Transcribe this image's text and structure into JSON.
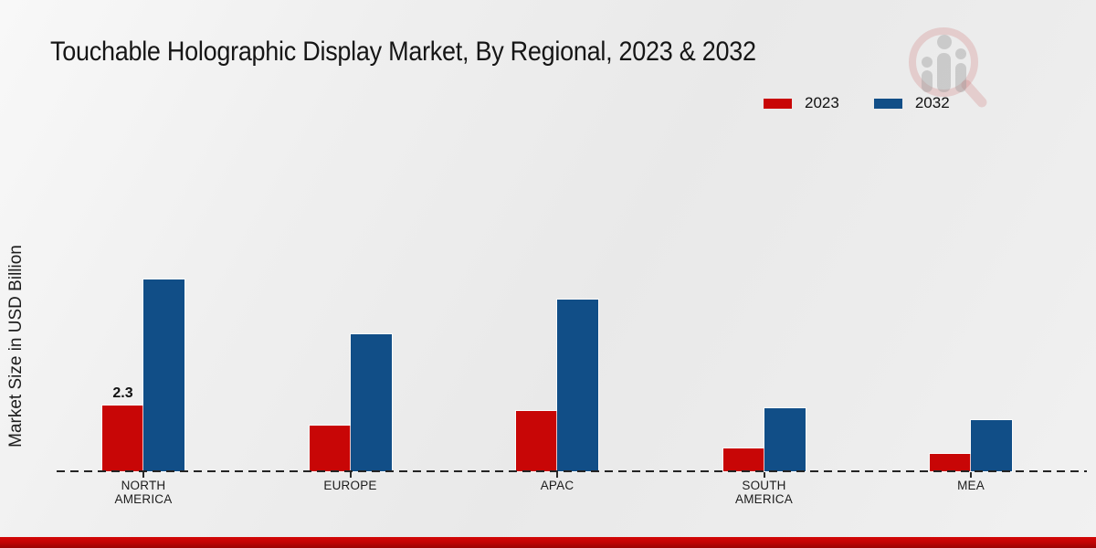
{
  "title": "Touchable Holographic Display Market, By Regional, 2023 & 2032",
  "y_axis_label": "Market Size in USD Billion",
  "legend": {
    "items": [
      {
        "label": "2023",
        "color": "#c80606"
      },
      {
        "label": "2032",
        "color": "#114e87"
      }
    ]
  },
  "chart_data": {
    "type": "bar",
    "title": "Touchable Holographic Display Market, By Regional, 2023 & 2032",
    "xlabel": "",
    "ylabel": "Market Size in USD Billion",
    "unit": "USD Billion",
    "categories": [
      "NORTH AMERICA",
      "EUROPE",
      "APAC",
      "SOUTH AMERICA",
      "MEA"
    ],
    "category_label_lines": [
      [
        "NORTH",
        "AMERICA"
      ],
      [
        "EUROPE"
      ],
      [
        "APAC"
      ],
      [
        "SOUTH",
        "AMERICA"
      ],
      [
        "MEA"
      ]
    ],
    "series": [
      {
        "name": "2023",
        "color": "#c80606",
        "values": [
          2.3,
          1.6,
          2.1,
          0.8,
          0.6
        ]
      },
      {
        "name": "2032",
        "color": "#114e87",
        "values": [
          6.7,
          4.8,
          6.0,
          2.2,
          1.8
        ]
      }
    ],
    "annotations": [
      {
        "category": "NORTH AMERICA",
        "series": "2023",
        "text": "2.3"
      }
    ],
    "ylim": [
      0,
      7.5
    ],
    "grid": false,
    "legend_position": "top-right",
    "baseline_axis": "dashed"
  },
  "watermark": {
    "name": "market-research-magnifier-logo"
  }
}
